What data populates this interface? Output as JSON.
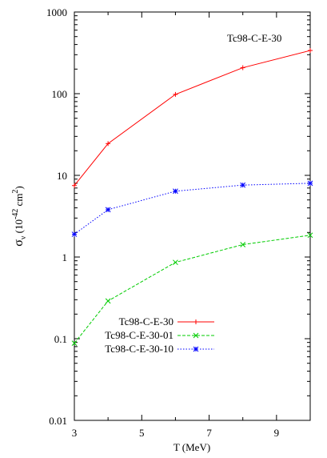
{
  "chart_data": {
    "type": "line",
    "title": "",
    "annotation": "Tc98-C-E-30",
    "xlabel": "T (MeV)",
    "ylabel_main": "σ",
    "ylabel_sub": "ν",
    "ylabel_rest": " (10",
    "ylabel_exp1": "-42",
    "ylabel_unit": " cm",
    "ylabel_exp2": "2",
    "ylabel_close": ")",
    "xlim": [
      3,
      10
    ],
    "ylim": [
      0.01,
      1000
    ],
    "yscale": "log",
    "xticks": [
      3,
      5,
      7,
      9
    ],
    "xtick_labels": [
      "3",
      "5",
      "7",
      "9"
    ],
    "yticks": [
      0.01,
      0.1,
      1,
      10,
      100,
      1000
    ],
    "ytick_labels": [
      "0.01",
      "0.1",
      "1",
      "10",
      "100",
      "1000"
    ],
    "grid": false,
    "legend_position": "lower-left",
    "series": [
      {
        "name": "Tc98-C-E-30",
        "color": "#ff0000",
        "marker": "plus",
        "dash": "solid",
        "x": [
          3,
          4,
          6,
          8,
          10
        ],
        "y": [
          7.5,
          24.5,
          98,
          208,
          338
        ]
      },
      {
        "name": "Tc98-C-E-30-01",
        "color": "#00cc00",
        "marker": "x",
        "dash": "dashed",
        "x": [
          3,
          4,
          6,
          8,
          10
        ],
        "y": [
          0.088,
          0.29,
          0.86,
          1.42,
          1.85
        ]
      },
      {
        "name": "Tc98-C-E-30-10",
        "color": "#0000ff",
        "marker": "star",
        "dash": "dotted",
        "x": [
          3,
          4,
          6,
          8,
          10
        ],
        "y": [
          1.9,
          3.8,
          6.4,
          7.6,
          8.0
        ]
      }
    ]
  }
}
